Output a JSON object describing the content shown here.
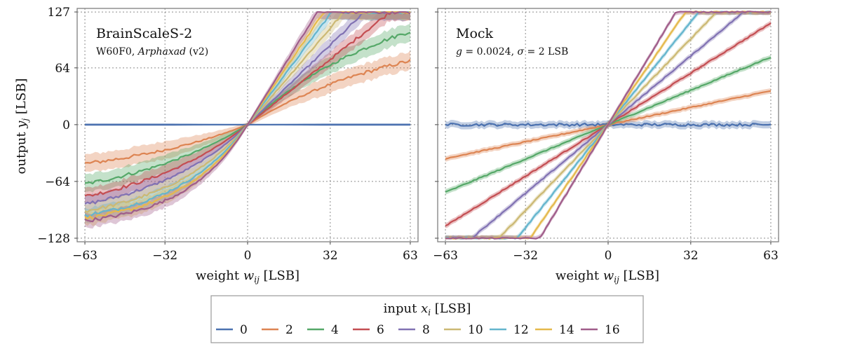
{
  "figure": {
    "ylabel": "output y_j [LSB]",
    "xlabel": "weight w_ij [LSB]",
    "legend_title": "input x_i [LSB]",
    "yticks": [
      127,
      64,
      0,
      -64,
      -128
    ],
    "xticks": [
      -63,
      -32,
      0,
      32,
      63
    ],
    "xtick_labels": [
      "−63",
      "−32",
      "0",
      "32",
      "63"
    ],
    "ytick_labels": [
      "127",
      "64",
      "0",
      "−64",
      "−128"
    ]
  },
  "colors": {
    "0": "#4c72b0",
    "2": "#dd8452",
    "4": "#55a868",
    "6": "#c44e52",
    "8": "#8172b3",
    "10": "#ccb974",
    "12": "#64b5cd",
    "14": "#e5b94c",
    "16": "#a05d8a"
  },
  "chart_data": [
    {
      "type": "line",
      "title": "BrainScaleS-2",
      "subtitle": "W60F0, Arphaxad (v2)",
      "xlabel": "weight w_ij [LSB]",
      "ylabel": "output y_j [LSB]",
      "xlim": [
        -63,
        63
      ],
      "ylim": [
        -128,
        127
      ],
      "grid": true,
      "series": [
        {
          "name": "0",
          "slope": 0.0,
          "neg_end": 0,
          "pos_end": 0,
          "band": 1.5
        },
        {
          "name": "2",
          "slope": 1.15,
          "neg_end": -63,
          "pos_end": 72,
          "band": 10
        },
        {
          "name": "4",
          "slope": 1.8,
          "neg_end": -93,
          "pos_end": 105,
          "band": 10
        },
        {
          "name": "6",
          "slope": 2.3,
          "neg_end": -107,
          "pos_end": 127,
          "band": 9
        },
        {
          "name": "8",
          "slope": 2.8,
          "neg_end": -110,
          "pos_end": 127,
          "band": 9
        },
        {
          "name": "10",
          "slope": 3.4,
          "neg_end": -112,
          "pos_end": 127,
          "band": 8
        },
        {
          "name": "12",
          "slope": 3.9,
          "neg_end": -113,
          "pos_end": 127,
          "band": 8
        },
        {
          "name": "14",
          "slope": 4.3,
          "neg_end": -114,
          "pos_end": 127,
          "band": 8
        },
        {
          "name": "16",
          "slope": 4.7,
          "neg_end": -115,
          "pos_end": 127,
          "band": 8
        }
      ]
    },
    {
      "type": "line",
      "title": "Mock",
      "subtitle": "g = 0.0024, σ = 2 LSB",
      "xlabel": "weight w_ij [LSB]",
      "ylabel": "",
      "xlim": [
        -63,
        63
      ],
      "ylim": [
        -128,
        127
      ],
      "grid": true,
      "series": [
        {
          "name": "0",
          "slope": 0.0,
          "band": 4
        },
        {
          "name": "2",
          "slope": 0.605,
          "band": 3
        },
        {
          "name": "4",
          "slope": 1.21,
          "band": 3
        },
        {
          "name": "6",
          "slope": 1.815,
          "band": 3
        },
        {
          "name": "8",
          "slope": 2.42,
          "band": 3
        },
        {
          "name": "10",
          "slope": 3.025,
          "band": 3
        },
        {
          "name": "12",
          "slope": 3.63,
          "band": 3
        },
        {
          "name": "14",
          "slope": 4.235,
          "band": 3
        },
        {
          "name": "16",
          "slope": 4.84,
          "band": 3
        }
      ]
    }
  ],
  "legend": [
    "0",
    "2",
    "4",
    "6",
    "8",
    "10",
    "12",
    "14",
    "16"
  ]
}
